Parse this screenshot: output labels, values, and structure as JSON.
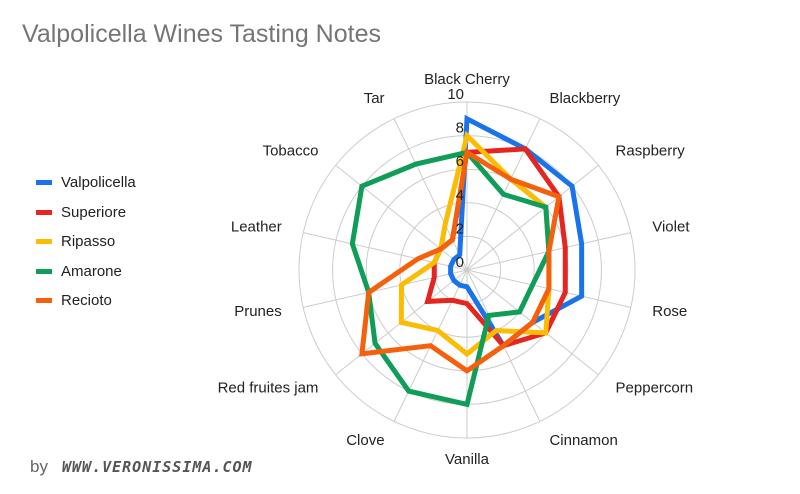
{
  "chart_data": {
    "type": "radar",
    "title": "Valpolicella Wines Tasting Notes",
    "axes": [
      "Black Cherry",
      "Blackberry",
      "Raspberry",
      "Violet",
      "Rose",
      "Peppercorn",
      "Cinnamon",
      "Vanilla",
      "Clove",
      "Red fruites jam",
      "Prunes",
      "Leather",
      "Tobacco",
      "Tar"
    ],
    "rlim": [
      0,
      10
    ],
    "ticks": [
      "0",
      "2",
      "4",
      "6",
      "8",
      "10"
    ],
    "grid": true,
    "legend_position": "left",
    "series": [
      {
        "name": "Valpolicella",
        "color": "#1a73e8",
        "values": [
          9,
          8,
          8,
          7,
          7,
          5,
          5,
          1,
          1,
          1,
          1,
          1,
          1,
          1
        ]
      },
      {
        "name": "Superiore",
        "color": "#e52520",
        "values": [
          7,
          8,
          7,
          6,
          6,
          6,
          5,
          2,
          2,
          3,
          2,
          2,
          2,
          2
        ]
      },
      {
        "name": "Ripasso",
        "color": "#fbbc04",
        "values": [
          8,
          6,
          6,
          5,
          5,
          6,
          4,
          5,
          4,
          5,
          4,
          2,
          2,
          3
        ]
      },
      {
        "name": "Amarone",
        "color": "#0f9d58",
        "values": [
          7,
          5,
          6,
          5,
          4,
          4,
          3,
          8,
          8,
          7,
          6,
          7,
          8,
          7
        ]
      },
      {
        "name": "Recioto",
        "color": "#f4600c",
        "values": [
          7,
          6,
          7,
          5,
          5,
          5,
          5,
          6,
          5,
          8,
          6,
          3,
          2,
          2
        ]
      }
    ]
  },
  "credit": {
    "by": "by",
    "site": "WWW.VERONISSIMA.COM"
  }
}
